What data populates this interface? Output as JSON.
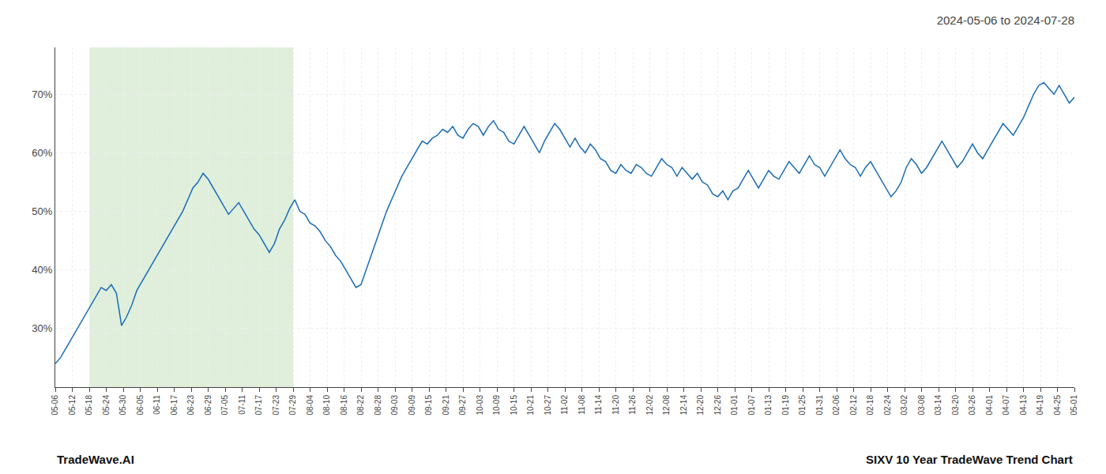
{
  "chart_data": {
    "type": "line",
    "title": "2024-05-06 to 2024-07-28",
    "annotations": [
      "TradeWave.AI",
      "SIXV 10 Year TradeWave Trend Chart"
    ],
    "color": "#1a6cb5",
    "grid": true,
    "shade": {
      "x": [
        2,
        14
      ],
      "color": "#d4ead0"
    },
    "xlim": [
      0,
      60
    ],
    "xticks": [
      {
        "value": 0,
        "label": "05-06"
      },
      {
        "value": 1,
        "label": "05-12"
      },
      {
        "value": 2,
        "label": "05-18"
      },
      {
        "value": 3,
        "label": "05-24"
      },
      {
        "value": 4,
        "label": "05-30"
      },
      {
        "value": 5,
        "label": "06-05"
      },
      {
        "value": 6,
        "label": "06-11"
      },
      {
        "value": 7,
        "label": "06-17"
      },
      {
        "value": 8,
        "label": "06-23"
      },
      {
        "value": 9,
        "label": "06-29"
      },
      {
        "value": 10,
        "label": "07-05"
      },
      {
        "value": 11,
        "label": "07-11"
      },
      {
        "value": 12,
        "label": "07-17"
      },
      {
        "value": 13,
        "label": "07-23"
      },
      {
        "value": 14,
        "label": "07-29"
      },
      {
        "value": 15,
        "label": "08-04"
      },
      {
        "value": 16,
        "label": "08-10"
      },
      {
        "value": 17,
        "label": "08-16"
      },
      {
        "value": 18,
        "label": "08-22"
      },
      {
        "value": 19,
        "label": "08-28"
      },
      {
        "value": 20,
        "label": "09-03"
      },
      {
        "value": 21,
        "label": "09-09"
      },
      {
        "value": 22,
        "label": "09-15"
      },
      {
        "value": 23,
        "label": "09-21"
      },
      {
        "value": 24,
        "label": "09-27"
      },
      {
        "value": 25,
        "label": "10-03"
      },
      {
        "value": 26,
        "label": "10-09"
      },
      {
        "value": 27,
        "label": "10-15"
      },
      {
        "value": 28,
        "label": "10-21"
      },
      {
        "value": 29,
        "label": "10-27"
      },
      {
        "value": 30,
        "label": "11-02"
      },
      {
        "value": 31,
        "label": "11-08"
      },
      {
        "value": 32,
        "label": "11-14"
      },
      {
        "value": 33,
        "label": "11-20"
      },
      {
        "value": 34,
        "label": "11-26"
      },
      {
        "value": 35,
        "label": "12-02"
      },
      {
        "value": 36,
        "label": "12-08"
      },
      {
        "value": 37,
        "label": "12-14"
      },
      {
        "value": 38,
        "label": "12-20"
      },
      {
        "value": 39,
        "label": "12-26"
      },
      {
        "value": 40,
        "label": "01-01"
      },
      {
        "value": 41,
        "label": "01-07"
      },
      {
        "value": 42,
        "label": "01-13"
      },
      {
        "value": 43,
        "label": "01-19"
      },
      {
        "value": 44,
        "label": "01-25"
      },
      {
        "value": 45,
        "label": "01-31"
      },
      {
        "value": 46,
        "label": "02-06"
      },
      {
        "value": 47,
        "label": "02-12"
      },
      {
        "value": 48,
        "label": "02-18"
      },
      {
        "value": 49,
        "label": "02-24"
      },
      {
        "value": 50,
        "label": "03-02"
      },
      {
        "value": 51,
        "label": "03-08"
      },
      {
        "value": 52,
        "label": "03-14"
      },
      {
        "value": 53,
        "label": "03-20"
      },
      {
        "value": 54,
        "label": "03-26"
      },
      {
        "value": 55,
        "label": "04-01"
      },
      {
        "value": 56,
        "label": "04-07"
      },
      {
        "value": 57,
        "label": "04-13"
      },
      {
        "value": 58,
        "label": "04-19"
      },
      {
        "value": 59,
        "label": "04-25"
      },
      {
        "value": 60,
        "label": "05-01"
      }
    ],
    "ylim": [
      20,
      78
    ],
    "yticks": [
      {
        "value": 30,
        "label": "30%"
      },
      {
        "value": 40,
        "label": "40%"
      },
      {
        "value": 50,
        "label": "50%"
      },
      {
        "value": 60,
        "label": "60%"
      },
      {
        "value": 70,
        "label": "70%"
      }
    ],
    "x": [
      0,
      0.3,
      0.6,
      0.9,
      1.2,
      1.5,
      1.8,
      2.1,
      2.4,
      2.7,
      3,
      3.3,
      3.6,
      3.9,
      4.2,
      4.5,
      4.8,
      5.1,
      5.4,
      5.7,
      6,
      6.3,
      6.6,
      6.9,
      7.2,
      7.5,
      7.8,
      8.1,
      8.4,
      8.7,
      9,
      9.3,
      9.6,
      9.9,
      10.2,
      10.5,
      10.8,
      11.1,
      11.4,
      11.7,
      12,
      12.3,
      12.6,
      12.9,
      13.2,
      13.5,
      13.8,
      14.1,
      14.4,
      14.7,
      15,
      15.3,
      15.6,
      15.9,
      16.2,
      16.5,
      16.8,
      17.1,
      17.4,
      17.7,
      18,
      18.3,
      18.6,
      18.9,
      19.2,
      19.5,
      19.8,
      20.1,
      20.4,
      20.7,
      21,
      21.3,
      21.6,
      21.9,
      22.2,
      22.5,
      22.8,
      23.1,
      23.4,
      23.7,
      24,
      24.3,
      24.6,
      24.9,
      25.2,
      25.5,
      25.8,
      26.1,
      26.4,
      26.7,
      27,
      27.3,
      27.6,
      27.9,
      28.2,
      28.5,
      28.8,
      29.1,
      29.4,
      29.7,
      30,
      30.3,
      30.6,
      30.9,
      31.2,
      31.5,
      31.8,
      32.1,
      32.4,
      32.7,
      33,
      33.3,
      33.6,
      33.9,
      34.2,
      34.5,
      34.8,
      35.1,
      35.4,
      35.7,
      36,
      36.3,
      36.6,
      36.9,
      37.2,
      37.5,
      37.8,
      38.1,
      38.4,
      38.7,
      39,
      39.3,
      39.6,
      39.9,
      40.2,
      40.5,
      40.8,
      41.1,
      41.4,
      41.7,
      42,
      42.3,
      42.6,
      42.9,
      43.2,
      43.5,
      43.8,
      44.1,
      44.4,
      44.7,
      45,
      45.3,
      45.6,
      45.9,
      46.2,
      46.5,
      46.8,
      47.1,
      47.4,
      47.7,
      48,
      48.3,
      48.6,
      48.9,
      49.2,
      49.5,
      49.8,
      50.1,
      50.4,
      50.7,
      51,
      51.3,
      51.6,
      51.9,
      52.2,
      52.5,
      52.8,
      53.1,
      53.4,
      53.7,
      54,
      54.3,
      54.6,
      54.9,
      55.2,
      55.5,
      55.8,
      56.1,
      56.4,
      56.7,
      57,
      57.3,
      57.6,
      57.9,
      58.2,
      58.5,
      58.8,
      59.1,
      59.4,
      59.7,
      60
    ],
    "values": [
      24.0,
      25.0,
      26.5,
      28.0,
      29.5,
      31.0,
      32.5,
      34.0,
      35.5,
      37.0,
      36.5,
      37.5,
      36.0,
      30.5,
      32.0,
      34.0,
      36.5,
      38.0,
      39.5,
      41.0,
      42.5,
      44.0,
      45.5,
      47.0,
      48.5,
      50.0,
      52.0,
      54.0,
      55.0,
      56.5,
      55.5,
      54.0,
      52.5,
      51.0,
      49.5,
      50.5,
      51.5,
      50.0,
      48.5,
      47.0,
      46.0,
      44.5,
      43.0,
      44.5,
      47.0,
      48.5,
      50.5,
      52.0,
      50.0,
      49.5,
      48.0,
      47.5,
      46.5,
      45.0,
      44.0,
      42.5,
      41.5,
      40.0,
      38.5,
      37.0,
      37.5,
      40.0,
      42.5,
      45.0,
      47.5,
      50.0,
      52.0,
      54.0,
      56.0,
      57.5,
      59.0,
      60.5,
      62.0,
      61.5,
      62.5,
      63.0,
      64.0,
      63.5,
      64.5,
      63.0,
      62.5,
      64.0,
      65.0,
      64.5,
      63.0,
      64.5,
      65.5,
      64.0,
      63.5,
      62.0,
      61.5,
      63.0,
      64.5,
      63.0,
      61.5,
      60.0,
      62.0,
      63.5,
      65.0,
      64.0,
      62.5,
      61.0,
      62.5,
      61.0,
      60.0,
      61.5,
      60.5,
      59.0,
      58.5,
      57.0,
      56.5,
      58.0,
      57.0,
      56.5,
      58.0,
      57.5,
      56.5,
      56.0,
      57.5,
      59.0,
      58.0,
      57.5,
      56.0,
      57.5,
      56.5,
      55.5,
      56.5,
      55.0,
      54.5,
      53.0,
      52.5,
      53.5,
      52.0,
      53.5,
      54.0,
      55.5,
      57.0,
      55.5,
      54.0,
      55.5,
      57.0,
      56.0,
      55.5,
      57.0,
      58.5,
      57.5,
      56.5,
      58.0,
      59.5,
      58.0,
      57.5,
      56.0,
      57.5,
      59.0,
      60.5,
      59.0,
      58.0,
      57.5,
      56.0,
      57.5,
      58.5,
      57.0,
      55.5,
      54.0,
      52.5,
      53.5,
      55.0,
      57.5,
      59.0,
      58.0,
      56.5,
      57.5,
      59.0,
      60.5,
      62.0,
      60.5,
      59.0,
      57.5,
      58.5,
      60.0,
      61.5,
      60.0,
      59.0,
      60.5,
      62.0,
      63.5,
      65.0,
      64.0,
      63.0,
      64.5,
      66.0,
      68.0,
      70.0,
      71.5,
      72.0,
      71.0,
      70.0,
      71.5,
      70.0,
      68.5,
      69.5
    ]
  }
}
